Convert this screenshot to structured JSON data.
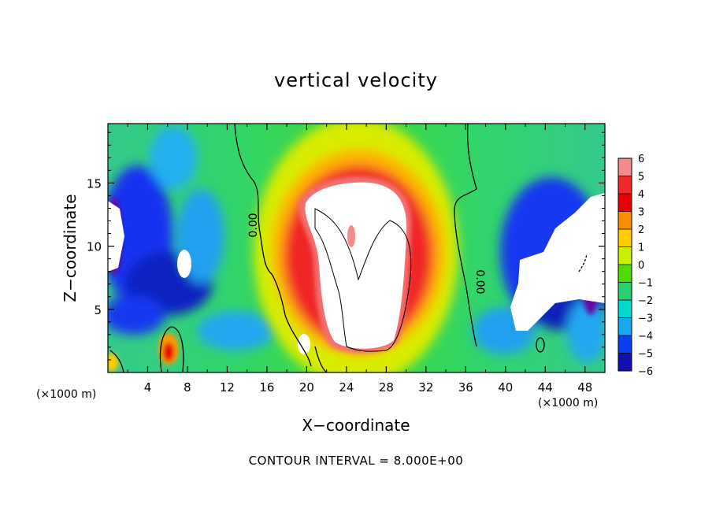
{
  "chart_data": {
    "type": "heatmap",
    "title": "vertical velocity",
    "xlabel": "X−coordinate",
    "ylabel": "Z−coordinate",
    "x_unit": "(×1000 m)",
    "x_unit_right": "(×1000 m)",
    "xlim": [
      0,
      50
    ],
    "ylim": [
      0,
      19.7
    ],
    "x_ticks": [
      4,
      8,
      12,
      16,
      20,
      24,
      28,
      32,
      36,
      40,
      44,
      48
    ],
    "x_tick_labels": [
      "4",
      "8",
      "12",
      "16",
      "20",
      "24",
      "28",
      "32",
      "36",
      "40",
      "44",
      "48"
    ],
    "y_ticks": [
      5,
      10,
      15
    ],
    "y_tick_labels": [
      "5",
      "10",
      "15"
    ],
    "colorbar": {
      "levels": [
        6,
        5,
        4,
        3,
        2,
        1,
        0,
        -1,
        -2,
        -3,
        -4,
        -5,
        -6
      ],
      "labels": [
        "6",
        "5",
        "4",
        "3",
        "2",
        "1",
        "0",
        "−1",
        "−2",
        "−3",
        "−4",
        "−5",
        "−6"
      ],
      "colors_top_to_bottom": [
        "#f58a8a",
        "#f02a2a",
        "#e80000",
        "#ff8c00",
        "#ffcc00",
        "#c8f000",
        "#50dc00",
        "#28d070",
        "#00d8d0",
        "#18a8f0",
        "#0840f0",
        "#1010b0",
        "#7010a8"
      ]
    },
    "contour_labels": [
      "0.00",
      "0.00"
    ],
    "footer": "CONTOUR INTERVAL = 8.000E+00"
  }
}
